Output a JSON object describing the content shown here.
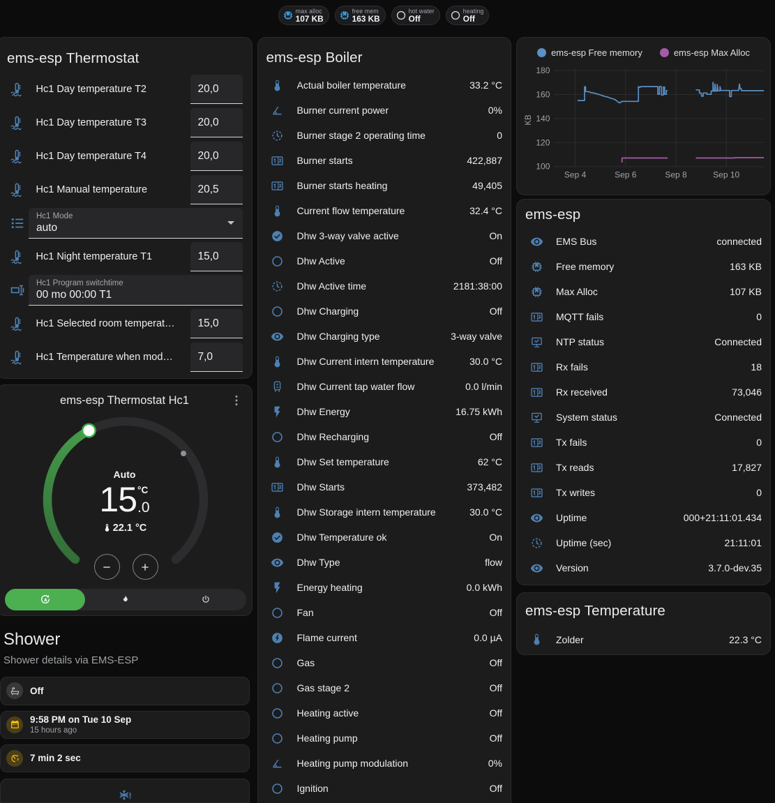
{
  "colors": {
    "page_bg": "#0c0c0c",
    "card_bg": "#1c1c1d",
    "card_border": "#2a2a2c",
    "entity_icon_blue": "#4e80b1",
    "badge_icon_blue": "#3aa1e0",
    "badge_icon_grey": "#d6d7d8",
    "tile_amber": "#fcc50c",
    "tile_grey": "#d9dadb",
    "active_green": "#4caf50",
    "dial_green_dark": "#37753c",
    "dial_green_light": "#46a14b",
    "dial_track_grey": "#2a2a2c",
    "line_blue": "#5a90c2",
    "line_purple": "#a55ba8"
  },
  "badges": [
    {
      "icon": "memory",
      "icon_color": "#3aa1e0",
      "label": "max alloc",
      "value": "107 KB"
    },
    {
      "icon": "memory",
      "icon_color": "#3aa1e0",
      "label": "free mem",
      "value": "163 KB"
    },
    {
      "icon": "radiobox-blank",
      "icon_color": "#d6d7d8",
      "label": "hot water",
      "value": "Off"
    },
    {
      "icon": "radiobox-blank",
      "icon_color": "#d6d7d8",
      "label": "heating",
      "value": "Off"
    }
  ],
  "thermostat_card": {
    "title": "ems-esp Thermostat",
    "rows": [
      {
        "type": "number",
        "icon": "coolant-temperature",
        "name": "Hc1 Day temperature T2",
        "value": "20,0"
      },
      {
        "type": "number",
        "icon": "coolant-temperature",
        "name": "Hc1 Day temperature T3",
        "value": "20,0"
      },
      {
        "type": "number",
        "icon": "coolant-temperature",
        "name": "Hc1 Day temperature T4",
        "value": "20,0"
      },
      {
        "type": "number",
        "icon": "coolant-temperature",
        "name": "Hc1 Manual temperature",
        "value": "20,5"
      },
      {
        "type": "select",
        "icon": "format-list-bulleted",
        "label": "Hc1 Mode",
        "value": "auto"
      },
      {
        "type": "number",
        "icon": "coolant-temperature",
        "name": "Hc1 Night temperature T1",
        "value": "15,0"
      },
      {
        "type": "text",
        "icon": "form-textbox",
        "label": "Hc1 Program switchtime",
        "value": "00 mo 00:00 T1"
      },
      {
        "type": "number",
        "icon": "coolant-temperature",
        "name": "Hc1 Selected room temperat…",
        "value": "15,0"
      },
      {
        "type": "number",
        "icon": "coolant-temperature",
        "name": "Hc1 Temperature when mod…",
        "value": "7,0"
      }
    ]
  },
  "hc1_card": {
    "title": "ems-esp Thermostat Hc1",
    "mode_label": "Auto",
    "target_temp_int": "15",
    "target_temp_frac": ".0",
    "temp_unit": "°C",
    "current_temp": "22.1 °C",
    "minus_label": "−",
    "plus_label": "+",
    "modes": [
      {
        "icon": "refresh-auto",
        "name": "auto",
        "active": true
      },
      {
        "icon": "fire",
        "name": "heat",
        "active": false
      },
      {
        "icon": "power",
        "name": "off",
        "active": false
      }
    ],
    "dial": {
      "min": 5,
      "max": 30,
      "value": 15,
      "current": 22.1,
      "arc_start_deg": 130,
      "arc_sweep_deg": 280
    }
  },
  "shower": {
    "title": "Shower",
    "subtitle": "Shower details via EMS-ESP",
    "tiles": [
      {
        "icon": "bathtub",
        "color": "grey",
        "title": "Off",
        "subtitle": ""
      },
      {
        "icon": "calendar",
        "color": "amber",
        "title": "9:58 PM on Tue 10 Sep",
        "subtitle": "15 hours ago"
      },
      {
        "icon": "timer",
        "color": "amber",
        "title": "7 min 2 sec",
        "subtitle": ""
      }
    ],
    "alert_icon": "snowflake-alert"
  },
  "boiler_card": {
    "title": "ems-esp Boiler",
    "rows": [
      {
        "icon": "thermometer",
        "name": "Actual boiler temperature",
        "value": "33.2 °C"
      },
      {
        "icon": "angle-acute",
        "name": "Burner current power",
        "value": "0%"
      },
      {
        "icon": "progress-clock",
        "name": "Burner stage 2 operating time",
        "value": "0"
      },
      {
        "icon": "counter",
        "name": "Burner starts",
        "value": "422,887"
      },
      {
        "icon": "counter",
        "name": "Burner starts heating",
        "value": "49,405"
      },
      {
        "icon": "thermometer",
        "name": "Current flow temperature",
        "value": "32.4 °C"
      },
      {
        "icon": "check-circle",
        "name": "Dhw 3-way valve active",
        "value": "On"
      },
      {
        "icon": "radiobox-blank",
        "name": "Dhw Active",
        "value": "Off"
      },
      {
        "icon": "progress-clock",
        "name": "Dhw Active time",
        "value": "2181:38:00"
      },
      {
        "icon": "radiobox-blank",
        "name": "Dhw Charging",
        "value": "Off"
      },
      {
        "icon": "eye",
        "name": "Dhw Charging type",
        "value": "3-way valve"
      },
      {
        "icon": "thermometer",
        "name": "Dhw Current intern temperature",
        "value": "30.0 °C"
      },
      {
        "icon": "water-boiler",
        "name": "Dhw Current tap water flow",
        "value": "0.0 l/min"
      },
      {
        "icon": "flash",
        "name": "Dhw Energy",
        "value": "16.75 kWh"
      },
      {
        "icon": "radiobox-blank",
        "name": "Dhw Recharging",
        "value": "Off"
      },
      {
        "icon": "thermometer",
        "name": "Dhw Set temperature",
        "value": "62 °C"
      },
      {
        "icon": "counter",
        "name": "Dhw Starts",
        "value": "373,482"
      },
      {
        "icon": "thermometer",
        "name": "Dhw Storage intern temperature",
        "value": "30.0 °C"
      },
      {
        "icon": "check-circle",
        "name": "Dhw Temperature ok",
        "value": "On"
      },
      {
        "icon": "eye",
        "name": "Dhw Type",
        "value": "flow"
      },
      {
        "icon": "flash",
        "name": "Energy heating",
        "value": "0.0 kWh"
      },
      {
        "icon": "radiobox-blank",
        "name": "Fan",
        "value": "Off"
      },
      {
        "icon": "flash-circle",
        "name": "Flame current",
        "value": "0.0 µA"
      },
      {
        "icon": "radiobox-blank",
        "name": "Gas",
        "value": "Off"
      },
      {
        "icon": "radiobox-blank",
        "name": "Gas stage 2",
        "value": "Off"
      },
      {
        "icon": "radiobox-blank",
        "name": "Heating active",
        "value": "Off"
      },
      {
        "icon": "radiobox-blank",
        "name": "Heating pump",
        "value": "Off"
      },
      {
        "icon": "angle-acute",
        "name": "Heating pump modulation",
        "value": "0%"
      },
      {
        "icon": "radiobox-blank",
        "name": "Ignition",
        "value": "Off"
      }
    ]
  },
  "device_card": {
    "title": "ems-esp",
    "rows": [
      {
        "icon": "eye",
        "name": "EMS Bus",
        "value": "connected"
      },
      {
        "icon": "memory",
        "name": "Free memory",
        "value": "163 KB"
      },
      {
        "icon": "memory",
        "name": "Max Alloc",
        "value": "107 KB"
      },
      {
        "icon": "counter",
        "name": "MQTT fails",
        "value": "0"
      },
      {
        "icon": "monitor-check",
        "name": "NTP status",
        "value": "Connected"
      },
      {
        "icon": "counter",
        "name": "Rx fails",
        "value": "18"
      },
      {
        "icon": "counter",
        "name": "Rx received",
        "value": "73,046"
      },
      {
        "icon": "monitor-check",
        "name": "System status",
        "value": "Connected"
      },
      {
        "icon": "counter",
        "name": "Tx fails",
        "value": "0"
      },
      {
        "icon": "counter",
        "name": "Tx reads",
        "value": "17,827"
      },
      {
        "icon": "counter",
        "name": "Tx writes",
        "value": "0"
      },
      {
        "icon": "eye",
        "name": "Uptime",
        "value": "000+21:11:01.434"
      },
      {
        "icon": "progress-clock",
        "name": "Uptime (sec)",
        "value": "21:11:01"
      },
      {
        "icon": "eye",
        "name": "Version",
        "value": "3.7.0-dev.35"
      }
    ]
  },
  "temperature_card": {
    "title": "ems-esp Temperature",
    "rows": [
      {
        "icon": "thermometer",
        "name": "Zolder",
        "value": "22.3 °C"
      }
    ]
  },
  "chart_data": {
    "type": "line",
    "ylabel": "KB",
    "ylim": [
      100,
      180
    ],
    "yticks": [
      100,
      120,
      140,
      160,
      180
    ],
    "xticks": [
      {
        "day": 4,
        "label": "Sep 4"
      },
      {
        "day": 6,
        "label": "Sep 6"
      },
      {
        "day": 8,
        "label": "Sep 8"
      },
      {
        "day": 10,
        "label": "Sep 10"
      }
    ],
    "xlim_days": [
      3.17,
      11.49
    ],
    "grid": true,
    "legend_position": "top",
    "series": [
      {
        "name": "ems-esp Free memory",
        "color": "#5a90c2",
        "segments": [
          [
            [
              4.09,
              155
            ],
            [
              4.37,
              155
            ],
            [
              4.37,
              166.5
            ],
            [
              4.41,
              166.5
            ],
            [
              4.41,
              162.5
            ],
            [
              4.55,
              162.3
            ],
            [
              4.62,
              161.6
            ],
            [
              4.75,
              161.2
            ],
            [
              4.85,
              160.5
            ],
            [
              4.95,
              160
            ],
            [
              5.05,
              159.3
            ],
            [
              5.15,
              158.6
            ],
            [
              5.28,
              157.9
            ],
            [
              5.38,
              157.2
            ],
            [
              5.48,
              156.5
            ],
            [
              5.58,
              155.8
            ],
            [
              5.63,
              155
            ],
            [
              5.68,
              154.2
            ],
            [
              5.74,
              153.2
            ],
            [
              5.8,
              153.2
            ],
            [
              5.84,
              154.3
            ],
            [
              6.51,
              154.3
            ],
            [
              6.51,
              166.6
            ],
            [
              6.57,
              165.8
            ],
            [
              6.6,
              166.6
            ],
            [
              7.28,
              166.6
            ],
            [
              7.28,
              160.2
            ],
            [
              7.34,
              160.2
            ],
            [
              7.34,
              166.6
            ],
            [
              7.42,
              166.6
            ],
            [
              7.42,
              159.6
            ],
            [
              7.5,
              159.6
            ],
            [
              7.5,
              166.3
            ],
            [
              7.55,
              166.3
            ],
            [
              7.55,
              160.2
            ],
            [
              7.62,
              160.2
            ],
            [
              7.62,
              163.3
            ],
            [
              7.67,
              163.3
            ]
          ],
          [
            [
              8.79,
              163.9
            ],
            [
              8.93,
              163.9
            ],
            [
              8.93,
              161.3
            ],
            [
              9.0,
              161.3
            ],
            [
              9.02,
              158.6
            ],
            [
              9.08,
              158.6
            ],
            [
              9.08,
              161.3
            ],
            [
              9.23,
              161.3
            ],
            [
              9.23,
              160.2
            ],
            [
              9.4,
              160.2
            ],
            [
              9.4,
              162.9
            ],
            [
              9.47,
              162.9
            ],
            [
              9.47,
              170.2
            ],
            [
              9.5,
              162.9
            ],
            [
              9.55,
              162.9
            ],
            [
              9.55,
              168.7
            ],
            [
              9.58,
              162.9
            ],
            [
              9.64,
              162.9
            ],
            [
              9.64,
              168.4
            ],
            [
              9.67,
              163.2
            ],
            [
              9.75,
              163.2
            ],
            [
              9.75,
              166.6
            ],
            [
              9.78,
              163.4
            ],
            [
              9.85,
              163.4
            ],
            [
              10.13,
              163.4
            ],
            [
              10.13,
              158.3
            ],
            [
              10.2,
              158.3
            ],
            [
              10.2,
              163.4
            ],
            [
              10.49,
              163.4
            ],
            [
              10.52,
              168.8
            ],
            [
              10.55,
              164.7
            ],
            [
              10.6,
              164.7
            ],
            [
              10.6,
              163.2
            ],
            [
              11.49,
              163.2
            ]
          ]
        ]
      },
      {
        "name": "ems-esp Max Alloc",
        "color": "#a55ba8",
        "segments": [
          [
            [
              5.83,
              103.8
            ],
            [
              5.86,
              103.8
            ],
            [
              5.86,
              107.1
            ],
            [
              7.67,
              107.1
            ]
          ],
          [
            [
              8.79,
              107.1
            ],
            [
              10.3,
              107.1
            ],
            [
              10.35,
              107.4
            ],
            [
              11.49,
              107.4
            ]
          ]
        ]
      }
    ]
  }
}
